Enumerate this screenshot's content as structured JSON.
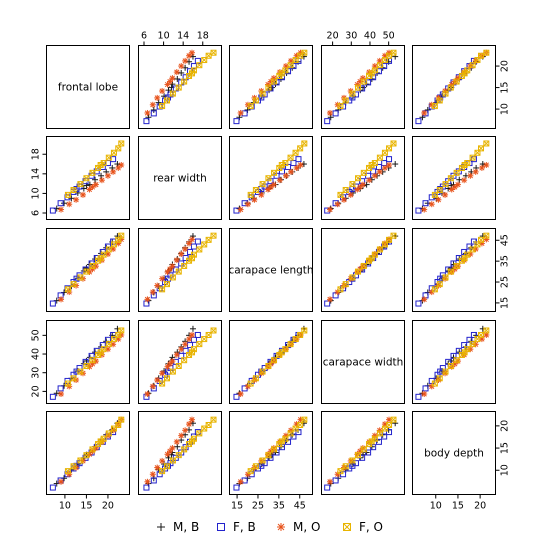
{
  "chart_data": {
    "type": "scatter",
    "kind": "scatterplot-matrix",
    "variables": [
      "frontal lobe",
      "rear width",
      "carapace length",
      "carapace width",
      "body depth"
    ],
    "ranges": [
      [
        7,
        23.5
      ],
      [
        6,
        20.5
      ],
      [
        14,
        48
      ],
      [
        17,
        55
      ],
      [
        6,
        22
      ]
    ],
    "ticks": [
      [
        10,
        15,
        20
      ],
      [
        6,
        10,
        14,
        18
      ],
      [
        15,
        25,
        35,
        45
      ],
      [
        20,
        30,
        40,
        50
      ],
      [
        10,
        15,
        20
      ]
    ],
    "tick_labels": [
      [
        "10",
        "15",
        "20"
      ],
      [
        "6",
        "10",
        "14",
        "18"
      ],
      [
        "15",
        "25",
        "35",
        "45"
      ],
      [
        "20",
        "30",
        "40",
        "50"
      ],
      [
        "10",
        "15",
        "20"
      ]
    ],
    "axis_placement": {
      "top": [
        1,
        3
      ],
      "right": [
        0,
        2,
        4
      ],
      "left": [
        1,
        3
      ],
      "bottom": [
        0,
        2,
        4
      ]
    },
    "grid": false,
    "legend_position": "bottom",
    "series": [
      {
        "name": "M, B",
        "marker": "plus",
        "color": "#1a1a1a",
        "points": [
          [
            8.1,
            6.9,
            16.1,
            19.0,
            7.0
          ],
          [
            9.8,
            8.0,
            20.0,
            23.0,
            8.2
          ],
          [
            11.5,
            9.0,
            23.0,
            27.0,
            10.1
          ],
          [
            13.0,
            10.1,
            26.8,
            30.9,
            11.4
          ],
          [
            14.4,
            11.0,
            30.3,
            34.8,
            12.8
          ],
          [
            15.8,
            11.8,
            33.4,
            38.2,
            14.0
          ],
          [
            17.0,
            12.8,
            36.0,
            41.0,
            15.3
          ],
          [
            18.4,
            13.6,
            38.7,
            43.8,
            16.8
          ],
          [
            19.6,
            14.4,
            41.4,
            46.8,
            18.0
          ],
          [
            21.0,
            15.2,
            44.2,
            50.0,
            19.1
          ],
          [
            22.2,
            16.0,
            47.0,
            53.5,
            20.6
          ],
          [
            15.0,
            11.6,
            31.7,
            36.3,
            13.5
          ]
        ]
      },
      {
        "name": "F, B",
        "marker": "square",
        "color": "#2222cc",
        "points": [
          [
            7.2,
            6.5,
            14.7,
            17.1,
            6.1
          ],
          [
            9.0,
            8.0,
            18.6,
            21.6,
            7.7
          ],
          [
            10.6,
            9.2,
            22.0,
            25.6,
            9.1
          ],
          [
            12.0,
            10.3,
            25.0,
            28.9,
            10.4
          ],
          [
            13.4,
            11.4,
            28.2,
            32.5,
            11.6
          ],
          [
            14.8,
            12.5,
            31.0,
            35.8,
            12.8
          ],
          [
            16.2,
            13.6,
            33.9,
            39.0,
            14.0
          ],
          [
            17.4,
            14.5,
            36.5,
            41.7,
            15.2
          ],
          [
            18.8,
            15.4,
            39.4,
            44.8,
            16.4
          ],
          [
            20.0,
            16.2,
            42.0,
            47.6,
            17.6
          ],
          [
            21.2,
            17.0,
            44.4,
            50.2,
            18.6
          ],
          [
            12.7,
            10.9,
            26.6,
            30.6,
            11.0
          ]
        ]
      },
      {
        "name": "M, O",
        "marker": "asterisk",
        "color": "#e8531b",
        "points": [
          [
            9.1,
            6.7,
            16.7,
            18.6,
            7.4
          ],
          [
            11.0,
            7.8,
            20.2,
            22.7,
            9.1
          ],
          [
            12.6,
            8.7,
            23.3,
            26.1,
            10.6
          ],
          [
            14.2,
            9.7,
            26.6,
            29.7,
            12.1
          ],
          [
            15.7,
            10.8,
            29.8,
            33.2,
            13.6
          ],
          [
            17.2,
            11.8,
            32.6,
            36.2,
            15.0
          ],
          [
            18.6,
            12.7,
            35.5,
            39.6,
            16.4
          ],
          [
            20.0,
            13.6,
            38.4,
            42.6,
            17.8
          ],
          [
            21.2,
            14.4,
            40.8,
            45.2,
            19.0
          ],
          [
            22.4,
            15.2,
            43.5,
            48.0,
            20.4
          ],
          [
            23.1,
            15.8,
            45.4,
            50.2,
            21.4
          ],
          [
            16.4,
            11.3,
            31.2,
            34.7,
            14.3
          ]
        ]
      },
      {
        "name": "F, O",
        "marker": "square-x",
        "color": "#e8b400",
        "points": [
          [
            10.7,
            9.7,
            21.5,
            24.2,
            9.8
          ],
          [
            12.0,
            10.7,
            24.0,
            27.0,
            10.9
          ],
          [
            13.6,
            11.9,
            27.2,
            30.6,
            12.2
          ],
          [
            15.0,
            13.1,
            30.0,
            33.6,
            13.4
          ],
          [
            16.4,
            14.2,
            32.7,
            36.7,
            14.7
          ],
          [
            17.7,
            15.2,
            35.2,
            39.5,
            15.9
          ],
          [
            19.0,
            16.2,
            38.1,
            42.6,
            17.1
          ],
          [
            20.2,
            17.3,
            40.6,
            45.3,
            18.3
          ],
          [
            21.4,
            18.3,
            43.0,
            48.0,
            19.4
          ],
          [
            22.4,
            19.2,
            45.2,
            50.2,
            20.2
          ],
          [
            23.1,
            20.2,
            47.2,
            52.6,
            21.4
          ],
          [
            18.3,
            15.8,
            36.4,
            40.9,
            16.5
          ]
        ]
      }
    ]
  }
}
